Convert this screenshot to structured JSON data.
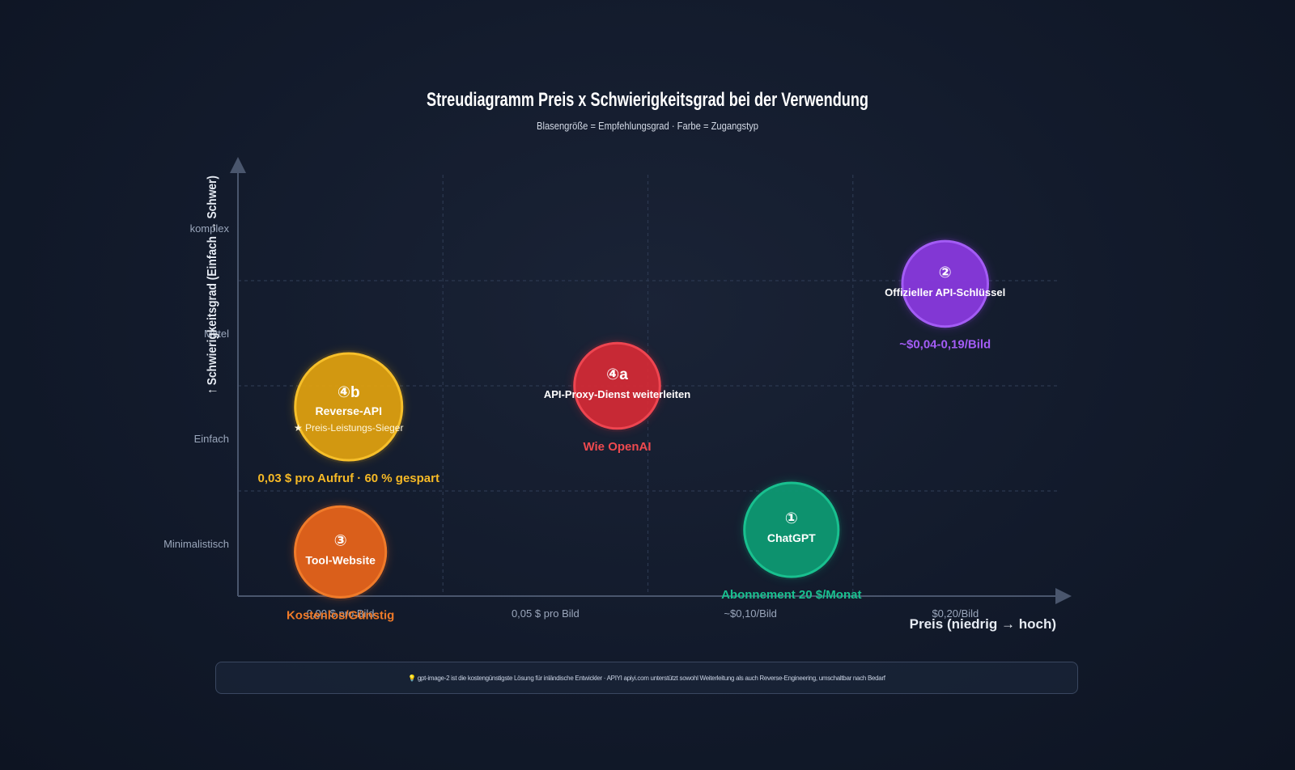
{
  "chart_data": {
    "type": "bubble",
    "title": "Streudiagramm Preis x Schwierigkeitsgrad bei der Verwendung",
    "subtitle": "Blasengröße = Empfehlungsgrad · Farbe = Zugangstyp",
    "xlabel": "Preis (niedrig → hoch)",
    "ylabel": "↑ Schwierigkeitsgrad (Einfach → Schwer)",
    "x_ticks": [
      "0,00 $ pro Bild",
      "0,05 $ pro Bild",
      "~$0,10/Bild",
      "$0,20/Bild"
    ],
    "y_ticks": [
      "Minimalistisch",
      "Einfach",
      "Mittel",
      "komplex"
    ],
    "xlim": [
      0,
      4
    ],
    "ylim": [
      0,
      4
    ],
    "grid": true,
    "points": [
      {
        "id": "3",
        "badge": "③",
        "label": "Tool-Website",
        "note": "",
        "annotation": "Kostenlos/Günstig",
        "x": 0.5,
        "y": 0.42,
        "recommendation": 0.85,
        "color": "#e8641a",
        "stroke": "#f07b2a",
        "annot_color": "#f07a28"
      },
      {
        "id": "4b",
        "badge": "④b",
        "label": "Reverse-API",
        "note": "★ Preis-Leistungs-Sieger",
        "annotation": "0,03 $ pro Aufruf · 60 % gespart",
        "x": 0.54,
        "y": 1.8,
        "recommendation": 1.0,
        "color": "#e0a10f",
        "stroke": "#f6bf2a",
        "annot_color": "#f6b926"
      },
      {
        "id": "4a",
        "badge": "④a",
        "label": "API-Proxy-Dienst weiterleiten",
        "note": "",
        "annotation": "Wie OpenAI",
        "x": 1.85,
        "y": 2.0,
        "recommendation": 0.8,
        "color": "#d42a35",
        "stroke": "#ee4550",
        "annot_color": "#ee4a4f"
      },
      {
        "id": "1",
        "badge": "①",
        "label": "ChatGPT",
        "note": "",
        "annotation": "Abonnement 20 $/Monat",
        "x": 2.7,
        "y": 0.63,
        "recommendation": 0.88,
        "color": "#0d9a73",
        "stroke": "#19c08f",
        "annot_color": "#19c08f"
      },
      {
        "id": "2",
        "badge": "②",
        "label": "Offizieller API-Schlüssel",
        "note": "",
        "annotation": "~$0,04-0,19/Bild",
        "x": 3.45,
        "y": 2.97,
        "recommendation": 0.8,
        "color": "#8a3ae0",
        "stroke": "#a35cf5",
        "annot_color": "#a35cf5"
      }
    ]
  },
  "footer": {
    "text": "💡 gpt-image-2 ist die kostengünstigste Lösung für inländische Entwickler · APIYI apiyi.com unterstützt sowohl Weiterleitung als auch Reverse-Engineering, umschaltbar nach Bedarf"
  },
  "colors": {
    "axis": "#4a566d",
    "grid": "#2c3850",
    "tick_text": "#9aa6bb",
    "title": "#ffffff",
    "subtitle": "#d4dae6"
  }
}
